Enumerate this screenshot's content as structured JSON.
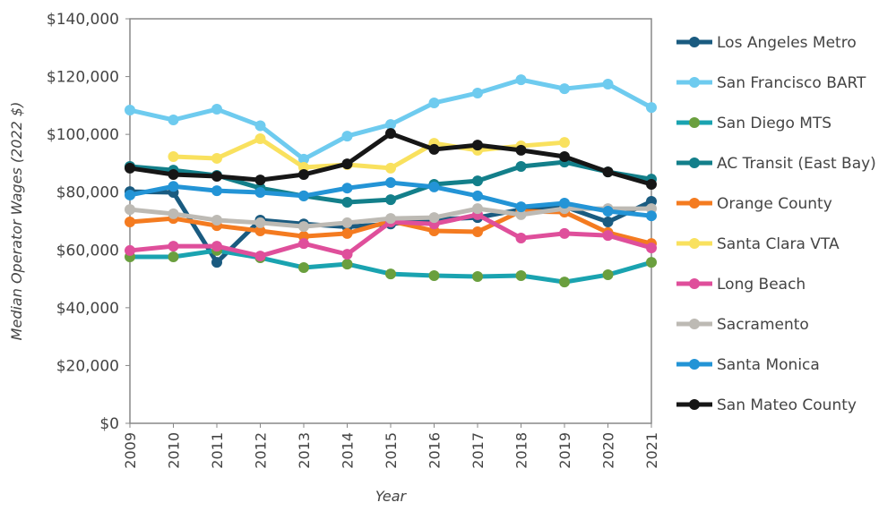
{
  "chart_data": {
    "type": "line",
    "xlabel": "Year",
    "ylabel": "Median Operator Wages (2022 $)",
    "ylim": [
      0,
      140000
    ],
    "yticks": [
      0,
      20000,
      40000,
      60000,
      80000,
      100000,
      120000,
      140000
    ],
    "ytick_labels": [
      "$0",
      "$20,000",
      "$40,000",
      "$60,000",
      "$80,000",
      "$100,000",
      "$120,000",
      "$140,000"
    ],
    "x": [
      2009,
      2010,
      2011,
      2012,
      2013,
      2014,
      2015,
      2016,
      2017,
      2018,
      2019,
      2020,
      2021
    ],
    "legend_position": "right",
    "grid": false,
    "series": [
      {
        "name": "Los Angeles Metro",
        "color": "#1a5b80",
        "values": [
          80200,
          79900,
          55700,
          70300,
          69000,
          68000,
          69000,
          70500,
          71200,
          74000,
          75000,
          69700,
          76800
        ]
      },
      {
        "name": "San Francisco BART",
        "color": "#6ecbef",
        "values": [
          108400,
          105000,
          108700,
          103000,
          91400,
          99400,
          103400,
          110900,
          114300,
          118900,
          115800,
          117400,
          109300
        ]
      },
      {
        "name": "San Diego MTS",
        "color": "#1aa3b0",
        "marker_color": "#6a9f3e",
        "values": [
          57600,
          57600,
          59800,
          57300,
          53900,
          55100,
          51700,
          51100,
          50800,
          51100,
          48900,
          51400,
          55700
        ]
      },
      {
        "name": "AC Transit (East Bay)",
        "color": "#137f8a",
        "values": [
          88900,
          87600,
          85800,
          81400,
          78700,
          76500,
          77400,
          82700,
          83900,
          88900,
          90400,
          87000,
          84500
        ]
      },
      {
        "name": "Orange County",
        "color": "#f47b20",
        "values": [
          69700,
          70900,
          68400,
          66600,
          64700,
          65700,
          70000,
          66600,
          66300,
          73400,
          73100,
          66000,
          62200
        ]
      },
      {
        "name": "Santa Clara VTA",
        "color": "#f9e15e",
        "values": [
          null,
          92300,
          91700,
          98500,
          88600,
          89500,
          88300,
          96900,
          94500,
          96000,
          97200,
          null,
          null
        ]
      },
      {
        "name": "Long Beach",
        "color": "#df4f9b",
        "values": [
          59800,
          61300,
          61300,
          57900,
          62200,
          58500,
          69700,
          69000,
          72200,
          64100,
          65700,
          65000,
          60700
        ]
      },
      {
        "name": "Sacramento",
        "color": "#bdbab4",
        "values": [
          74000,
          72500,
          70300,
          69400,
          68100,
          69400,
          70900,
          71200,
          74300,
          72200,
          74300,
          74300,
          74300
        ]
      },
      {
        "name": "Santa Monica",
        "color": "#2394d6",
        "values": [
          79000,
          82000,
          80500,
          79900,
          78700,
          81400,
          83300,
          81800,
          78700,
          74900,
          76200,
          73400,
          71800
        ]
      },
      {
        "name": "San Mateo County",
        "color": "#161616",
        "values": [
          88300,
          86100,
          85500,
          84200,
          86100,
          89800,
          100300,
          94800,
          96300,
          94500,
          92300,
          87000,
          82700
        ]
      }
    ]
  }
}
